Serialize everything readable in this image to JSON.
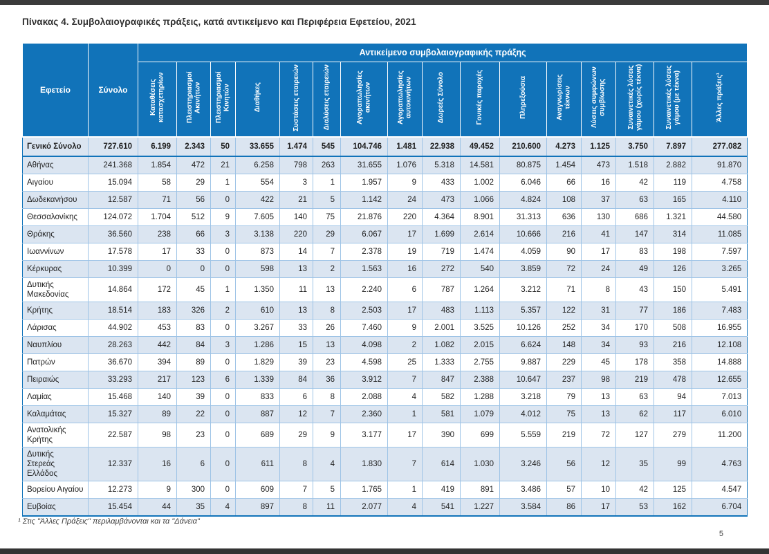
{
  "page": {
    "title": "Πίνακας 4. Συμβολαιογραφικές πράξεις, κατά αντικείμενο και Περιφέρεια Εφετείου, 2021",
    "footnote": "¹ Στις \"Άλλες Πράξεις\" περιλαμβάνονται και τα \"Δάνεια\"",
    "page_number": "5"
  },
  "colors": {
    "header_bg": "#1173B9",
    "alt_row_bg": "#DBE5F1",
    "grid_line": "#9DC3E6",
    "edge_bar": "#3B3B3B"
  },
  "chart_data": {
    "type": "table",
    "corner_header": "Εφετείο",
    "total_column_header": "Σύνολο",
    "group_header": "Αντικείμενο συμβολαιογραφικής πράξης",
    "columns": [
      "Καταθέσεις κατασχετηρίων",
      "Πλειστηριασμοί Ακινήτων",
      "Πλειστηριασμοί Κινητών",
      "Διαθήκες",
      "Συστάσεις εταιρειών",
      "Διαλύσεις εταιρειών",
      "Αγοραπωλησίες ακινήτων",
      "Αγοραπωλησίες αυτοκινήτων",
      "Δωρεές Σύνολο",
      "Γονικές παροχές",
      "Πληρεξούσια",
      "Αναγνωρίσεις τέκνων",
      "Λύσεις συμφώνων συμβίωσης",
      "Συναινετικές λύσεις γάμου (χωρίς τέκνα)",
      "Συναινετικές λύσεις γάμου (με τέκνα)",
      "Άλλες πράξεις¹"
    ],
    "total_row": {
      "label": "Γενικό Σύνολο",
      "values": [
        "727.610",
        "6.199",
        "2.343",
        "50",
        "33.655",
        "1.474",
        "545",
        "104.746",
        "1.481",
        "22.938",
        "49.452",
        "210.600",
        "4.273",
        "1.125",
        "3.750",
        "7.897",
        "277.082"
      ]
    },
    "rows": [
      {
        "label": "Αθήνας",
        "values": [
          "241.368",
          "1.854",
          "472",
          "21",
          "6.258",
          "798",
          "263",
          "31.655",
          "1.076",
          "5.318",
          "14.581",
          "80.875",
          "1.454",
          "473",
          "1.518",
          "2.882",
          "91.870"
        ]
      },
      {
        "label": "Αιγαίου",
        "values": [
          "15.094",
          "58",
          "29",
          "1",
          "554",
          "3",
          "1",
          "1.957",
          "9",
          "433",
          "1.002",
          "6.046",
          "66",
          "16",
          "42",
          "119",
          "4.758"
        ]
      },
      {
        "label": "Δωδεκανήσου",
        "values": [
          "12.587",
          "71",
          "56",
          "0",
          "422",
          "21",
          "5",
          "1.142",
          "24",
          "473",
          "1.066",
          "4.824",
          "108",
          "37",
          "63",
          "165",
          "4.110"
        ]
      },
      {
        "label": "Θεσσαλονίκης",
        "values": [
          "124.072",
          "1.704",
          "512",
          "9",
          "7.605",
          "140",
          "75",
          "21.876",
          "220",
          "4.364",
          "8.901",
          "31.313",
          "636",
          "130",
          "686",
          "1.321",
          "44.580"
        ]
      },
      {
        "label": "Θράκης",
        "values": [
          "36.560",
          "238",
          "66",
          "3",
          "3.138",
          "220",
          "29",
          "6.067",
          "17",
          "1.699",
          "2.614",
          "10.666",
          "216",
          "41",
          "147",
          "314",
          "11.085"
        ]
      },
      {
        "label": "Ιωαννίνων",
        "values": [
          "17.578",
          "17",
          "33",
          "0",
          "873",
          "14",
          "7",
          "2.378",
          "19",
          "719",
          "1.474",
          "4.059",
          "90",
          "17",
          "83",
          "198",
          "7.597"
        ]
      },
      {
        "label": "Κέρκυρας",
        "values": [
          "10.399",
          "0",
          "0",
          "0",
          "598",
          "13",
          "2",
          "1.563",
          "16",
          "272",
          "540",
          "3.859",
          "72",
          "24",
          "49",
          "126",
          "3.265"
        ]
      },
      {
        "label": "Δυτικής Μακεδονίας",
        "values": [
          "14.864",
          "172",
          "45",
          "1",
          "1.350",
          "11",
          "13",
          "2.240",
          "6",
          "787",
          "1.264",
          "3.212",
          "71",
          "8",
          "43",
          "150",
          "5.491"
        ]
      },
      {
        "label": "Κρήτης",
        "values": [
          "18.514",
          "183",
          "326",
          "2",
          "610",
          "13",
          "8",
          "2.503",
          "17",
          "483",
          "1.113",
          "5.357",
          "122",
          "31",
          "77",
          "186",
          "7.483"
        ]
      },
      {
        "label": "Λάρισας",
        "values": [
          "44.902",
          "453",
          "83",
          "0",
          "3.267",
          "33",
          "26",
          "7.460",
          "9",
          "2.001",
          "3.525",
          "10.126",
          "252",
          "34",
          "170",
          "508",
          "16.955"
        ]
      },
      {
        "label": "Ναυπλίου",
        "values": [
          "28.263",
          "442",
          "84",
          "3",
          "1.286",
          "15",
          "13",
          "4.098",
          "2",
          "1.082",
          "2.015",
          "6.624",
          "148",
          "34",
          "93",
          "216",
          "12.108"
        ]
      },
      {
        "label": "Πατρών",
        "values": [
          "36.670",
          "394",
          "89",
          "0",
          "1.829",
          "39",
          "23",
          "4.598",
          "25",
          "1.333",
          "2.755",
          "9.887",
          "229",
          "45",
          "178",
          "358",
          "14.888"
        ]
      },
      {
        "label": "Πειραιώς",
        "values": [
          "33.293",
          "217",
          "123",
          "6",
          "1.339",
          "84",
          "36",
          "3.912",
          "7",
          "847",
          "2.388",
          "10.647",
          "237",
          "98",
          "219",
          "478",
          "12.655"
        ]
      },
      {
        "label": "Λαμίας",
        "values": [
          "15.468",
          "140",
          "39",
          "0",
          "833",
          "6",
          "8",
          "2.088",
          "4",
          "582",
          "1.288",
          "3.218",
          "79",
          "13",
          "63",
          "94",
          "7.013"
        ]
      },
      {
        "label": "Καλαμάτας",
        "values": [
          "15.327",
          "89",
          "22",
          "0",
          "887",
          "12",
          "7",
          "2.360",
          "1",
          "581",
          "1.079",
          "4.012",
          "75",
          "13",
          "62",
          "117",
          "6.010"
        ]
      },
      {
        "label": "Ανατολικής Κρήτης",
        "values": [
          "22.587",
          "98",
          "23",
          "0",
          "689",
          "29",
          "9",
          "3.177",
          "17",
          "390",
          "699",
          "5.559",
          "219",
          "72",
          "127",
          "279",
          "11.200"
        ]
      },
      {
        "label": "Δυτικής Στερεάς Ελλάδος",
        "values": [
          "12.337",
          "16",
          "6",
          "0",
          "611",
          "8",
          "4",
          "1.830",
          "7",
          "614",
          "1.030",
          "3.246",
          "56",
          "12",
          "35",
          "99",
          "4.763"
        ]
      },
      {
        "label": "Βορείου Αιγαίου",
        "values": [
          "12.273",
          "9",
          "300",
          "0",
          "609",
          "7",
          "5",
          "1.765",
          "1",
          "419",
          "891",
          "3.486",
          "57",
          "10",
          "42",
          "125",
          "4.547"
        ]
      },
      {
        "label": "Ευβοίας",
        "values": [
          "15.454",
          "44",
          "35",
          "4",
          "897",
          "8",
          "11",
          "2.077",
          "4",
          "541",
          "1.227",
          "3.584",
          "86",
          "17",
          "53",
          "162",
          "6.704"
        ]
      }
    ]
  }
}
